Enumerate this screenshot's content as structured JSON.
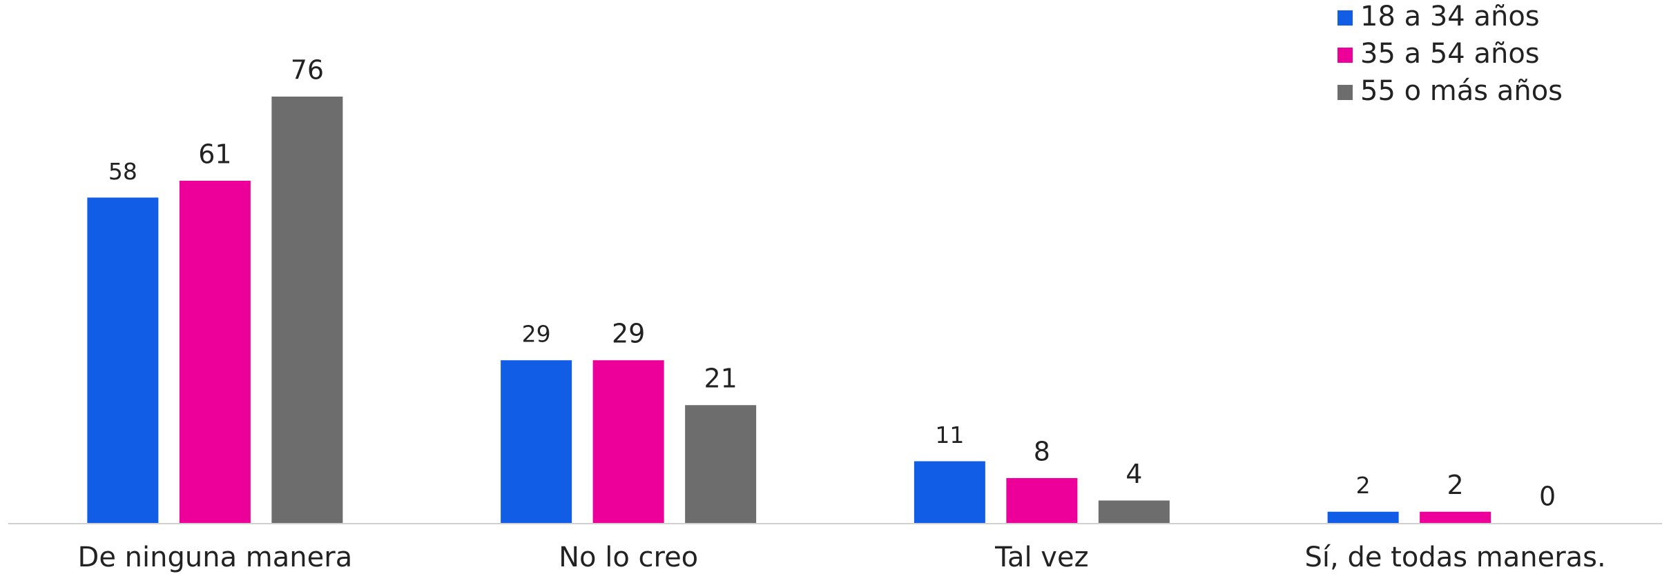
{
  "chart_data": {
    "type": "bar",
    "categories": [
      "De ninguna manera",
      "No lo creo",
      "Tal vez",
      "Sí, de todas maneras."
    ],
    "series": [
      {
        "name": "18 a 34 años",
        "color": "#125de6",
        "values": [
          58,
          29,
          11,
          2
        ]
      },
      {
        "name": "35 a 54 años",
        "color": "#ec0099",
        "values": [
          61,
          29,
          8,
          2
        ]
      },
      {
        "name": "55 o más años",
        "color": "#6d6d6d",
        "values": [
          76,
          21,
          4,
          0
        ]
      }
    ],
    "legend": "top-right"
  }
}
